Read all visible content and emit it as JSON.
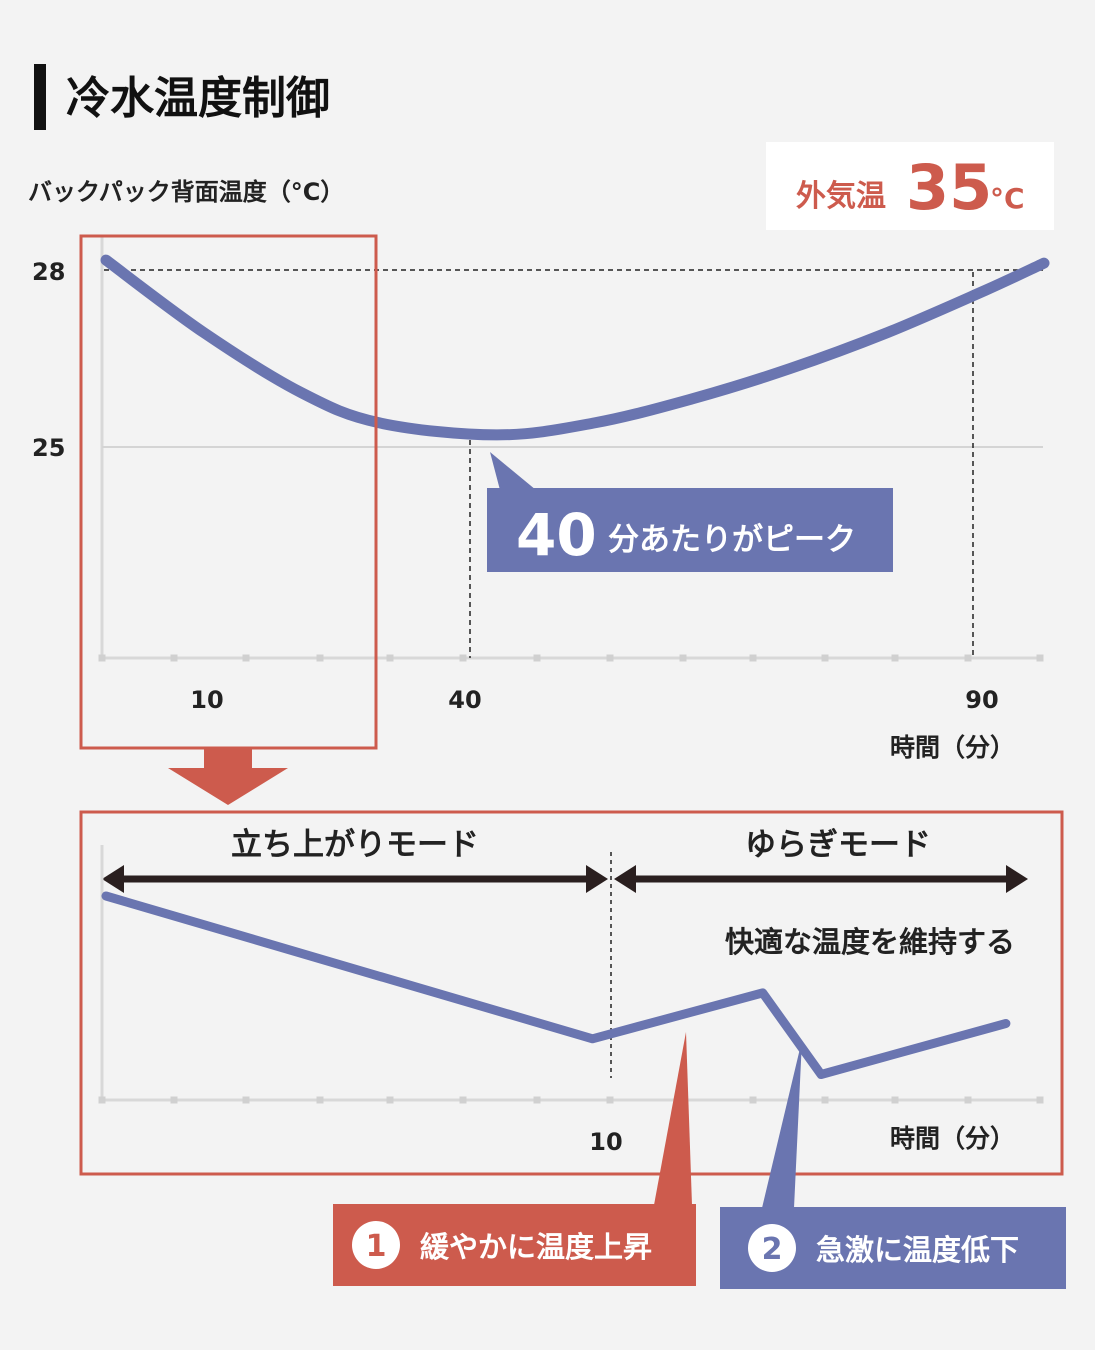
{
  "title": "冷水温度制御",
  "outside_temp": {
    "label": "外気温",
    "value": "35",
    "unit": "°C"
  },
  "chart_data": [
    {
      "type": "line",
      "ylabel": "バックパック背面温度（°C）",
      "xlabel": "時間（分）",
      "x_ticks": [
        "10",
        "40",
        "90"
      ],
      "y_ticks": [
        "28",
        "25"
      ],
      "xlim": [
        0,
        96
      ],
      "ylim": [
        21.5,
        28.5
      ],
      "series": [
        {
          "x": [
            0,
            10,
            20,
            28,
            40,
            50,
            60,
            70,
            80,
            90,
            96
          ],
          "y": [
            28.1,
            26.9,
            25.9,
            25.4,
            25.2,
            25.4,
            25.8,
            26.3,
            26.9,
            27.6,
            28.05
          ]
        }
      ],
      "reference_lines": [
        {
          "axis": "y",
          "value": 28
        },
        {
          "axis": "y",
          "value": 25
        },
        {
          "axis": "x",
          "value": 40
        },
        {
          "axis": "x",
          "value": 90
        }
      ],
      "annotation": {
        "value": "40",
        "text": "分あたりがピーク"
      },
      "highlight_range": [
        0,
        10
      ],
      "grid": false
    },
    {
      "type": "line",
      "xlabel": "時間（分）",
      "x_ticks": [
        "10"
      ],
      "xlim": [
        0,
        19.2
      ],
      "series": [
        {
          "x": [
            0,
            10,
            13.5,
            14.7,
            18.5
          ],
          "y": [
            20.0,
            6.0,
            10.5,
            2.5,
            7.5
          ]
        }
      ],
      "modes": [
        {
          "label": "立ち上がりモード",
          "range": [
            0,
            10
          ]
        },
        {
          "label": "ゆらぎモード",
          "range": [
            10,
            18.5
          ],
          "note": "快適な温度を維持する"
        }
      ],
      "callouts": [
        {
          "number": "1",
          "text": "緩やかに温度上昇",
          "color": "#cd5b4d"
        },
        {
          "number": "2",
          "text": "急激に温度低下",
          "color": "#6a75b0"
        }
      ]
    }
  ],
  "colors": {
    "accent_red": "#cd5b4d",
    "line_blue": "#6a75b0",
    "background": "#f3f3f3"
  }
}
